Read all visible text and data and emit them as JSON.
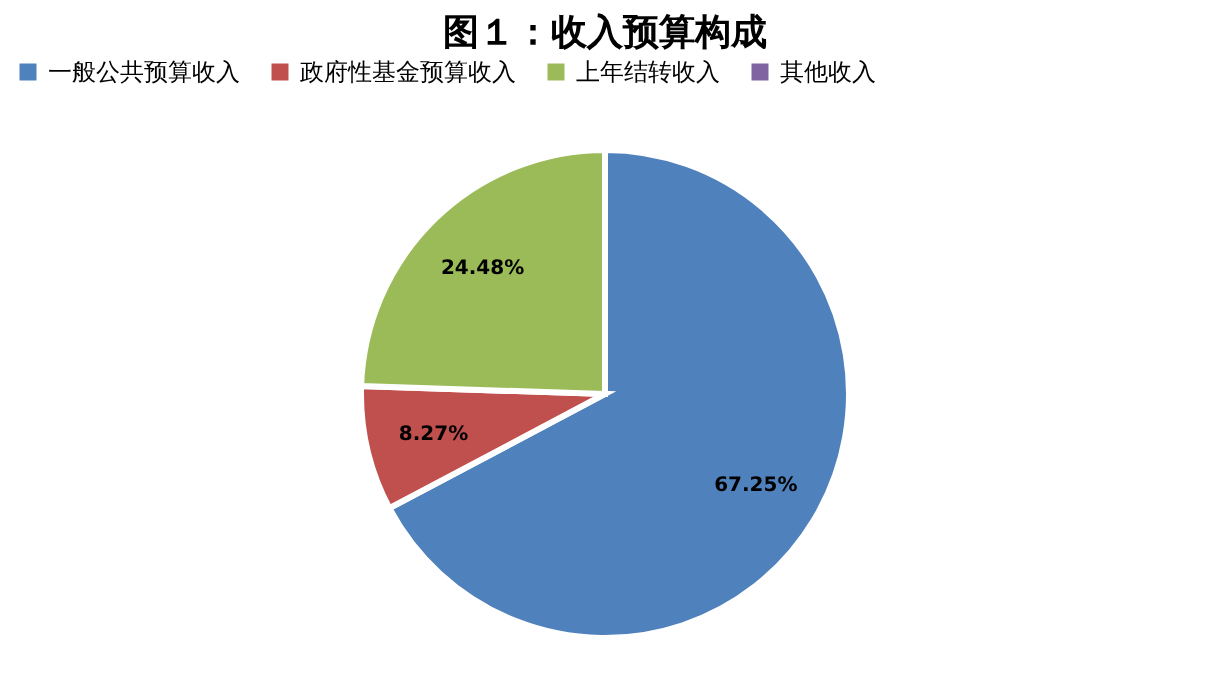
{
  "chart_data": {
    "type": "pie",
    "title": "图１：收入预算构成",
    "categories": [
      "一般公共预算收入",
      "政府性基金预算收入",
      "上年结转收入",
      "其他收入"
    ],
    "values": [
      67.25,
      8.27,
      24.48,
      0
    ],
    "colors": [
      "#4f81bd",
      "#c0504d",
      "#9bbb59",
      "#8064a2"
    ],
    "value_labels": [
      "67.25%",
      "8.27%",
      "24.48%",
      null
    ],
    "legend": "top"
  }
}
